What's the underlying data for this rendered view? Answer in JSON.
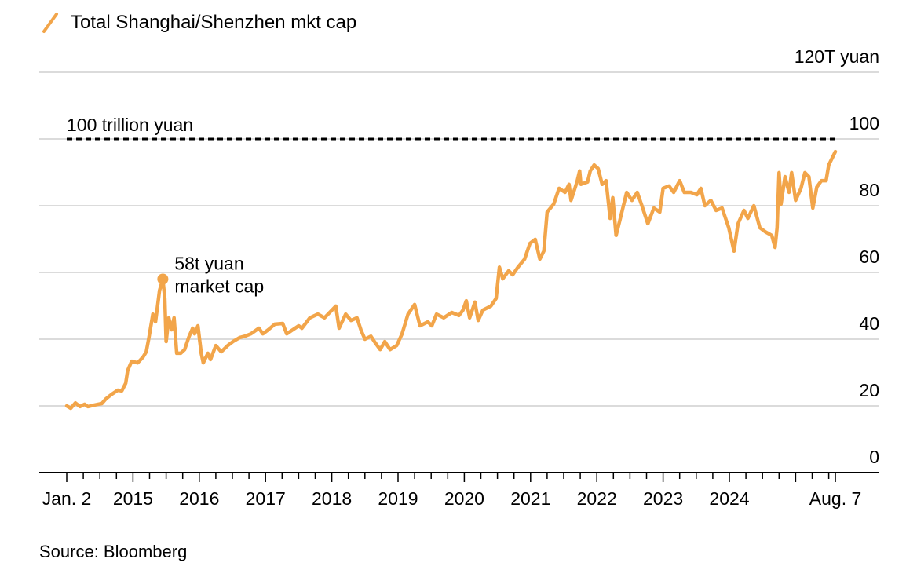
{
  "chart_data": {
    "type": "line",
    "legend": [
      {
        "label": "Total Shanghai/Shenzhen mkt cap",
        "color": "#F2A54A"
      }
    ],
    "legend_placement": "top-left",
    "y_unit_label": "120T yuan",
    "ylim": [
      0,
      120
    ],
    "y_ticks": [
      0,
      20,
      40,
      60,
      80,
      100,
      120
    ],
    "y_tick_labels": [
      "0",
      "20",
      "40",
      "60",
      "80",
      "100",
      "120T yuan"
    ],
    "xlim": [
      2014.0,
      2025.6
    ],
    "x_ticks": [
      2014.0,
      2015,
      2016,
      2017,
      2018,
      2019,
      2020,
      2021,
      2022,
      2023,
      2024,
      2025.6
    ],
    "x_tick_labels": [
      "Jan. 2",
      "2015",
      "2016",
      "2017",
      "2018",
      "2019",
      "2020",
      "2021",
      "2022",
      "2023",
      "2024",
      "Aug. 7"
    ],
    "grid": true,
    "reference_line": {
      "value": 100,
      "label": "100 trillion yuan",
      "style": "dashed",
      "color": "#000000"
    },
    "annotation": {
      "x": 2015.45,
      "y": 58,
      "lines": [
        "58t yuan",
        "market cap"
      ]
    },
    "series": [
      {
        "name": "Total Shanghai/Shenzhen mkt cap",
        "color": "#F2A54A",
        "x": [
          2014.0,
          2014.06,
          2014.13,
          2014.2,
          2014.27,
          2014.32,
          2014.41,
          2014.53,
          2014.59,
          2014.68,
          2014.77,
          2014.83,
          2014.89,
          2014.92,
          2014.98,
          2015.07,
          2015.15,
          2015.2,
          2015.24,
          2015.3,
          2015.34,
          2015.4,
          2015.45,
          2015.48,
          2015.5,
          2015.54,
          2015.58,
          2015.62,
          2015.66,
          2015.72,
          2015.78,
          2015.84,
          2015.9,
          2015.93,
          2015.98,
          2016.03,
          2016.06,
          2016.13,
          2016.17,
          2016.25,
          2016.33,
          2016.43,
          2016.51,
          2016.61,
          2016.69,
          2016.78,
          2016.9,
          2016.96,
          2017.04,
          2017.14,
          2017.26,
          2017.32,
          2017.38,
          2017.5,
          2017.55,
          2017.67,
          2017.79,
          2017.89,
          2018.06,
          2018.11,
          2018.21,
          2018.29,
          2018.38,
          2018.44,
          2018.5,
          2018.59,
          2018.66,
          2018.73,
          2018.8,
          2018.88,
          2018.98,
          2019.06,
          2019.15,
          2019.25,
          2019.33,
          2019.45,
          2019.51,
          2019.58,
          2019.69,
          2019.81,
          2019.92,
          2019.98,
          2020.03,
          2020.08,
          2020.16,
          2020.21,
          2020.28,
          2020.4,
          2020.48,
          2020.53,
          2020.58,
          2020.67,
          2020.73,
          2020.81,
          2020.91,
          2020.99,
          2021.07,
          2021.14,
          2021.2,
          2021.25,
          2021.35,
          2021.43,
          2021.52,
          2021.58,
          2021.61,
          2021.7,
          2021.74,
          2021.76,
          2021.86,
          2021.9,
          2021.96,
          2022.02,
          2022.08,
          2022.14,
          2022.2,
          2022.24,
          2022.29,
          2022.35,
          2022.45,
          2022.53,
          2022.61,
          2022.68,
          2022.77,
          2022.86,
          2022.95,
          2023.0,
          2023.09,
          2023.16,
          2023.25,
          2023.32,
          2023.42,
          2023.51,
          2023.57,
          2023.63,
          2023.72,
          2023.8,
          2023.89,
          2023.99,
          2024.07,
          2024.13,
          2024.22,
          2024.28,
          2024.37,
          2024.46,
          2024.54,
          2024.64,
          2024.69,
          2024.72,
          2024.75,
          2024.78,
          2024.84,
          2024.9,
          2024.94,
          2025.0,
          2025.08,
          2025.14,
          2025.2,
          2025.26,
          2025.32,
          2025.39,
          2025.46,
          2025.5,
          2025.6
        ],
        "values": [
          20.0,
          19.3,
          20.9,
          19.8,
          20.5,
          19.8,
          20.2,
          20.7,
          22.1,
          23.5,
          24.7,
          24.5,
          26.8,
          30.6,
          33.4,
          32.9,
          34.6,
          36.2,
          40.5,
          47.5,
          45.2,
          54.6,
          58.0,
          52.2,
          39.3,
          46.4,
          42.8,
          46.4,
          35.8,
          35.8,
          36.9,
          40.5,
          43.3,
          41.6,
          44.0,
          35.8,
          32.9,
          35.8,
          33.9,
          38.1,
          36.2,
          38.1,
          39.3,
          40.5,
          40.9,
          41.6,
          43.3,
          41.6,
          42.8,
          44.5,
          44.7,
          41.6,
          42.4,
          44.0,
          43.3,
          46.4,
          47.5,
          46.4,
          49.9,
          43.3,
          47.5,
          45.6,
          46.4,
          42.8,
          40.0,
          40.9,
          38.8,
          36.9,
          39.3,
          36.9,
          38.1,
          41.6,
          47.5,
          50.4,
          44.0,
          45.2,
          44.0,
          47.5,
          46.4,
          48.0,
          47.1,
          48.7,
          51.5,
          46.4,
          51.1,
          45.6,
          48.7,
          49.9,
          52.2,
          61.6,
          58.1,
          60.5,
          59.3,
          61.6,
          64.0,
          68.7,
          69.9,
          64.0,
          66.4,
          78.1,
          80.5,
          85.2,
          84.0,
          86.4,
          81.6,
          87.1,
          90.4,
          86.4,
          87.1,
          90.4,
          92.2,
          91.1,
          86.4,
          87.5,
          76.2,
          82.4,
          71.1,
          75.8,
          84.0,
          81.6,
          84.0,
          80.0,
          74.6,
          79.3,
          78.1,
          85.2,
          85.9,
          84.0,
          87.5,
          84.0,
          84.0,
          83.3,
          85.2,
          80.0,
          81.6,
          78.6,
          79.3,
          73.4,
          66.4,
          74.6,
          78.6,
          76.2,
          80.0,
          73.4,
          72.2,
          71.1,
          67.5,
          73.4,
          89.9,
          80.5,
          88.7,
          84.0,
          89.9,
          81.6,
          85.2,
          89.9,
          88.7,
          79.3,
          85.6,
          87.5,
          87.5,
          92.2,
          96.2
        ]
      }
    ]
  },
  "legend_label": "Total Shanghai/Shenzhen mkt cap",
  "source": "Source: Bloomberg"
}
